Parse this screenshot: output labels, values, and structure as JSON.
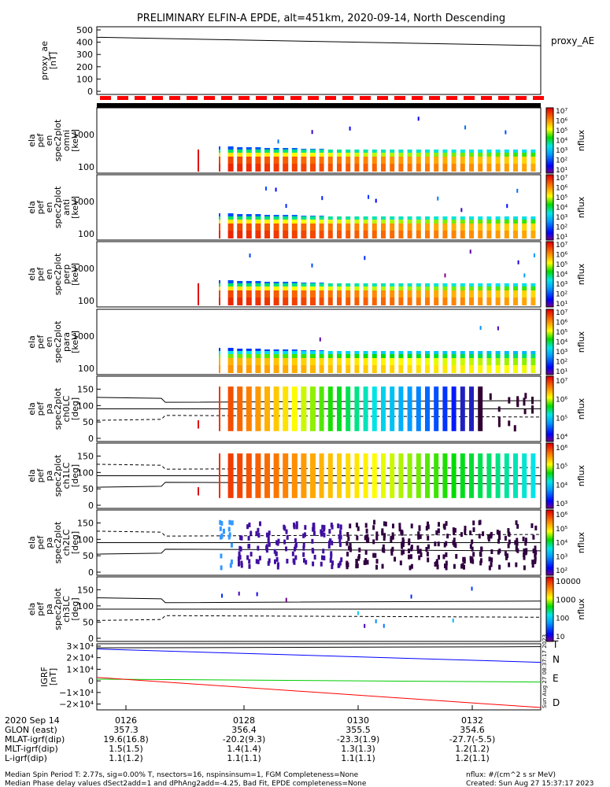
{
  "title": "PRELIMINARY ELFIN-A EPDE, alt=451km, 2020-09-14, North Descending",
  "colors": {
    "ring": "#ff0000",
    "bar": "#000000",
    "igrf_t": "#000000",
    "igrf_n": "#0000ff",
    "igrf_e": "#00cc00",
    "igrf_d": "#ff0000"
  },
  "chart_data": [
    {
      "type": "line",
      "panel": "proxy_ae",
      "ylabel": [
        "proxy_ae",
        "[nT]"
      ],
      "yticks": [
        "500",
        "400",
        "300",
        "200",
        "100",
        "0"
      ],
      "ylim": [
        0,
        500
      ],
      "legend": "proxy_AE",
      "x": [
        0,
        1
      ],
      "values": [
        440,
        372
      ]
    },
    {
      "type": "heatmap",
      "panel": "spec-omni",
      "ylabel": [
        "ela",
        "pef",
        "en",
        "spec2plot",
        "omni",
        "[keV]"
      ],
      "yticks": [
        "1000",
        "100"
      ],
      "colorbar_label": "nflux",
      "colorbar_ticks": [
        "10⁷",
        "10⁶",
        "10⁵",
        "10⁴",
        "10³",
        "10²",
        "10¹"
      ]
    },
    {
      "type": "heatmap",
      "panel": "spec-anti",
      "ylabel": [
        "ela",
        "pef",
        "en",
        "spec2plot",
        "anti",
        "[keV]"
      ],
      "yticks": [
        "1000",
        "100"
      ],
      "colorbar_label": "nflux",
      "colorbar_ticks": [
        "10⁷",
        "10⁶",
        "10⁵",
        "10⁴",
        "10³",
        "10²",
        "10¹"
      ]
    },
    {
      "type": "heatmap",
      "panel": "spec-perp",
      "ylabel": [
        "ela",
        "pef",
        "en",
        "spec2plot",
        "perp",
        "[keV]"
      ],
      "yticks": [
        "1000",
        "100"
      ],
      "colorbar_label": "nflux",
      "colorbar_ticks": [
        "10⁷",
        "10⁶",
        "10⁵",
        "10⁴",
        "10³",
        "10²",
        "10¹"
      ]
    },
    {
      "type": "heatmap",
      "panel": "spec-para",
      "ylabel": [
        "ela",
        "pef",
        "en",
        "spec2plot",
        "para",
        "[keV]"
      ],
      "yticks": [
        "1000",
        "100"
      ],
      "colorbar_label": "nflux",
      "colorbar_ticks": [
        "10⁷",
        "10⁶",
        "10⁵",
        "10⁴",
        "10³",
        "10²",
        "10¹"
      ]
    },
    {
      "type": "heatmap",
      "panel": "pa-ch0",
      "ylabel": [
        "ela",
        "pef",
        "pa",
        "spec2plot",
        "ch0LC",
        "[deg]"
      ],
      "yticks": [
        "150",
        "100",
        "50",
        "0"
      ],
      "ylim": [
        0,
        180
      ],
      "colorbar_label": "nflux",
      "colorbar_ticks": [
        "10⁷",
        "10⁶",
        "10⁵",
        "10⁴"
      ]
    },
    {
      "type": "heatmap",
      "panel": "pa-ch1",
      "ylabel": [
        "ela",
        "pef",
        "pa",
        "spec2plot",
        "ch1LC",
        "[deg]"
      ],
      "yticks": [
        "150",
        "100",
        "50",
        "0"
      ],
      "ylim": [
        0,
        180
      ],
      "colorbar_label": "nflux",
      "colorbar_ticks": [
        "10⁶",
        "10⁵",
        "10⁴",
        "10³"
      ]
    },
    {
      "type": "heatmap",
      "panel": "pa-ch2",
      "ylabel": [
        "ela",
        "pef",
        "pa",
        "spec2plot",
        "ch2LC",
        "[deg]"
      ],
      "yticks": [
        "150",
        "100",
        "50",
        "0"
      ],
      "ylim": [
        0,
        180
      ],
      "colorbar_label": "nflux",
      "colorbar_ticks": [
        "10⁶",
        "10⁵",
        "10⁴",
        "10³",
        "10²"
      ]
    },
    {
      "type": "heatmap",
      "panel": "pa-ch3",
      "ylabel": [
        "ela",
        "pef",
        "pa",
        "spec2plot",
        "ch3LC",
        "[deg]"
      ],
      "yticks": [
        "150",
        "100",
        "50",
        "0"
      ],
      "ylim": [
        0,
        180
      ],
      "colorbar_label": "nflux",
      "colorbar_ticks": [
        "10000",
        "1000",
        "100",
        "10"
      ]
    },
    {
      "type": "line",
      "panel": "igrf",
      "ylabel": [
        "IGRF",
        "[nT]"
      ],
      "yticks": [
        "3×10⁴",
        "2×10⁴",
        "1×10⁴",
        "0",
        "−1×10⁴",
        "−2×10⁴"
      ],
      "ylim": [
        -25000,
        32000
      ],
      "x": [
        0,
        1
      ],
      "series": [
        {
          "name": "T",
          "values": [
            28500,
            29500
          ]
        },
        {
          "name": "N",
          "values": [
            27500,
            16000
          ]
        },
        {
          "name": "E",
          "values": [
            1500,
            -1000
          ]
        },
        {
          "name": "D",
          "values": [
            3000,
            -23000
          ]
        }
      ]
    }
  ],
  "ephem": {
    "rows": [
      {
        "label": "2020 Sep 14",
        "values": [
          "0126",
          "0128",
          "0130",
          "0132"
        ]
      },
      {
        "label": "GLON (east)",
        "values": [
          "357.3",
          "356.4",
          "355.5",
          "354.6"
        ]
      },
      {
        "label": "MLAT-igrf(dip)",
        "values": [
          "19.6(16.8)",
          "-20.2(9.3)",
          "-23.3(1.9)",
          "-27.7(-5.5)"
        ]
      },
      {
        "label": "MLT-igrf(dip)",
        "values": [
          "1.5(1.5)",
          "1.4(1.4)",
          "1.3(1.3)",
          "1.2(1.2)"
        ]
      },
      {
        "label": "L-igrf(dip)",
        "values": [
          "1.1(1.2)",
          "1.1(1.1)",
          "1.1(1.1)",
          "1.2(1.1)"
        ]
      }
    ]
  },
  "footer": {
    "line1": "Median Spin Period T: 2.77s, sig=0.00% T, nsectors=16, nspinsinsum=1, FGM Completeness=None",
    "line2": "Median Phase delay values dSect2add=1 and dPhAng2add=-4.25, Bad Fit, EPDE completeness=None",
    "right1": "nflux: #/(cm^2 s sr MeV)",
    "right2": "Created: Sun Aug 27 15:37:17 2023",
    "vertical": "Sun Aug 27 08:37:17 2023"
  }
}
